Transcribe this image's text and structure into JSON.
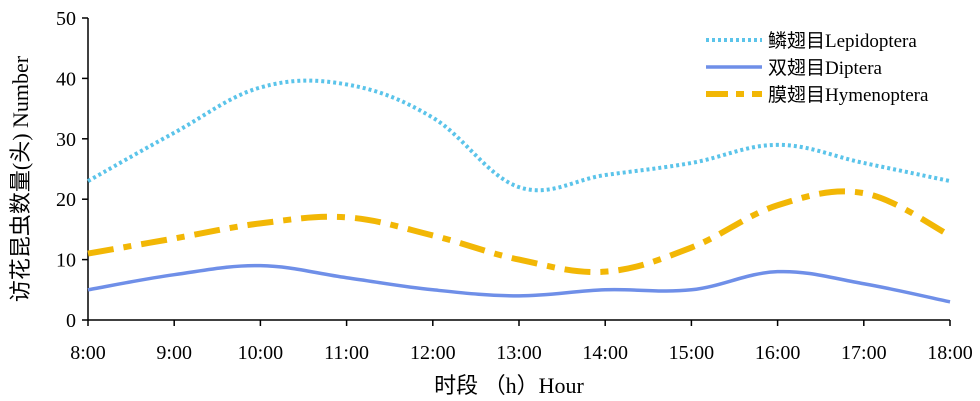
{
  "chart_data": {
    "type": "line",
    "title": "",
    "xlabel": "时段 （h）Hour",
    "ylabel": "访花昆虫数量(头) Number",
    "categories": [
      "8:00",
      "9:00",
      "10:00",
      "11:00",
      "12:00",
      "13:00",
      "14:00",
      "15:00",
      "16:00",
      "17:00",
      "18:00"
    ],
    "ylim": [
      0,
      50
    ],
    "yticks": [
      "0",
      "10",
      "20",
      "30",
      "40",
      "50"
    ],
    "grid": false,
    "legend_position": "top-right",
    "series": [
      {
        "name": "鳞翅目Lepidoptera",
        "values": [
          23,
          31,
          38.5,
          39,
          33.5,
          22,
          24,
          26,
          29,
          26,
          23
        ],
        "color": "#5bc4ea",
        "style": "dotted"
      },
      {
        "name": "双翅目Diptera",
        "values": [
          5,
          7.5,
          9,
          7,
          5,
          4,
          5,
          5,
          8,
          6,
          3
        ],
        "color": "#6f8fe8",
        "style": "solid"
      },
      {
        "name": "膜翅目Hymenoptera",
        "values": [
          11,
          13.5,
          16,
          17,
          14,
          10,
          8,
          12,
          19,
          21,
          14
        ],
        "color": "#f2b705",
        "style": "dash-dot"
      }
    ]
  }
}
